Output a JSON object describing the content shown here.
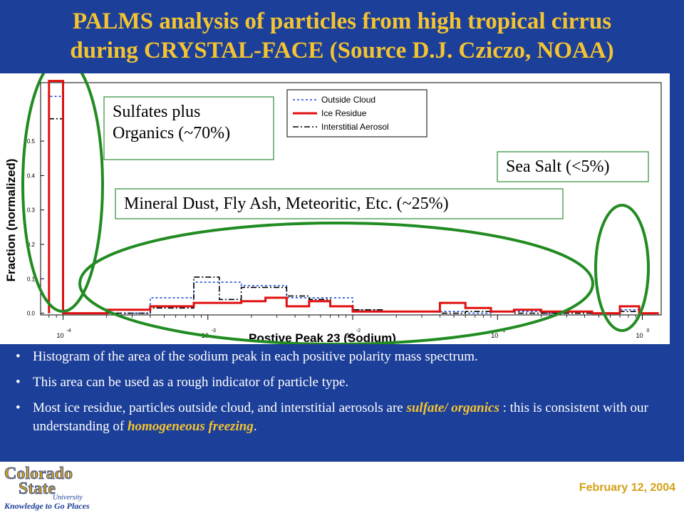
{
  "title": {
    "line1": "PALMS analysis of particles from high tropical cirrus",
    "line2": "during CRYSTAL-FACE (Source D.J. Cziczo, NOAA)"
  },
  "bullets": [
    {
      "text": "Histogram of the area of the sodium peak in each positive polarity mass spectrum."
    },
    {
      "text": "This area can be used as a rough indicator of particle type."
    },
    {
      "pre": "Most ice residue, particles outside cloud, and interstitial aerosols are ",
      "em1": "sulfate/ organics",
      "mid": " : this is consistent with our understanding of ",
      "em2": "homogeneous freezing",
      "post": "."
    }
  ],
  "footer": {
    "date": "February 12, 2004",
    "logo_line1": "Colorado",
    "logo_line2": "State",
    "logo_line3": "University",
    "logo_tagline": "Knowledge to Go Places"
  },
  "colors": {
    "slide_bg": "#1c3f99",
    "title": "#f4c430",
    "ice_residue": "#e01010",
    "outside_cloud": "#1f4fd6",
    "interstitial": "#000000",
    "ellipse": "#228b22",
    "date": "#d4a017"
  },
  "chart_data": {
    "type": "line",
    "step": true,
    "xlabel": "Postive Peak 23 (Sodium)",
    "ylabel": "Fraction (normalized)",
    "xscale": "log",
    "xlim": [
      7e-05,
      1.35
    ],
    "ylim": [
      -0.005,
      0.67
    ],
    "xticks": [
      {
        "value": 0.0001,
        "base": "10",
        "exp": "-4"
      },
      {
        "value": 0.001,
        "base": "10",
        "exp": "-3"
      },
      {
        "value": 0.01,
        "base": "10",
        "exp": "-2"
      },
      {
        "value": 0.1,
        "base": "10",
        "exp": "-1"
      },
      {
        "value": 1,
        "base": "10",
        "exp": "0"
      }
    ],
    "yticks": [
      {
        "value": 0.0,
        "label": "0.0"
      },
      {
        "value": 0.1,
        "label": "0.1"
      },
      {
        "value": 0.2,
        "label": "0.2"
      },
      {
        "value": 0.3,
        "label": "0.3"
      },
      {
        "value": 0.4,
        "label": "0.4"
      },
      {
        "value": 0.5,
        "label": "0.5"
      }
    ],
    "grid": false,
    "legend": "top-center",
    "series": [
      {
        "name": "Outside Cloud",
        "style": "dotted",
        "bins": [
          8e-05,
          0.0001,
          0.00015,
          0.0002,
          0.0003,
          0.0004,
          0.0006,
          0.0008,
          0.0012,
          0.0017,
          0.0025,
          0.0035,
          0.005,
          0.007,
          0.01,
          0.016,
          0.025,
          0.04,
          0.06,
          0.09,
          0.13,
          0.2,
          0.3,
          0.45,
          0.7,
          0.95,
          1.3
        ],
        "values": [
          0.63,
          0.0,
          0.0,
          0.0,
          0.0,
          0.045,
          0.045,
          0.09,
          0.09,
          0.08,
          0.08,
          0.045,
          0.045,
          0.045,
          0.01,
          0.005,
          0.005,
          0.005,
          0.0,
          0.005,
          0.005,
          0.0,
          0.005,
          0.0,
          0.01,
          0.0
        ]
      },
      {
        "name": "Ice Residue",
        "style": "solid",
        "bins": [
          8e-05,
          0.0001,
          0.00015,
          0.0002,
          0.0003,
          0.0004,
          0.0006,
          0.0008,
          0.0012,
          0.0017,
          0.0025,
          0.0035,
          0.005,
          0.007,
          0.01,
          0.016,
          0.025,
          0.04,
          0.06,
          0.09,
          0.13,
          0.2,
          0.3,
          0.45,
          0.7,
          0.95,
          1.3
        ],
        "values": [
          0.675,
          0.0,
          0.0,
          0.01,
          0.01,
          0.02,
          0.02,
          0.03,
          0.03,
          0.035,
          0.045,
          0.02,
          0.035,
          0.02,
          0.005,
          0.005,
          0.005,
          0.03,
          0.015,
          0.005,
          0.01,
          0.005,
          0.005,
          0.0,
          0.02,
          0.0
        ]
      },
      {
        "name": "Interstitial Aerosol",
        "style": "dashdot",
        "bins": [
          8e-05,
          0.0001,
          0.00015,
          0.0002,
          0.0003,
          0.0004,
          0.0006,
          0.0008,
          0.0012,
          0.0017,
          0.0025,
          0.0035,
          0.005,
          0.007,
          0.01,
          0.016,
          0.025,
          0.04,
          0.06,
          0.09,
          0.13,
          0.2,
          0.3,
          0.45,
          0.7,
          0.95,
          1.3
        ],
        "values": [
          0.565,
          0.0,
          0.0,
          0.0,
          0.0,
          0.015,
          0.015,
          0.105,
          0.04,
          0.075,
          0.075,
          0.05,
          0.04,
          0.02,
          0.01,
          0.005,
          0.005,
          0.0,
          0.005,
          0.005,
          0.0,
          0.0,
          0.0,
          0.0,
          0.005,
          0.0
        ]
      }
    ],
    "annotations": [
      {
        "id": "sulfates",
        "lines": [
          "Sulfates plus",
          "Organics (~70%)"
        ]
      },
      {
        "id": "sea_salt",
        "lines": [
          "Sea Salt (<5%)"
        ]
      },
      {
        "id": "mineral",
        "lines": [
          "Mineral Dust, Fly Ash, Meteoritic, Etc. (~25%)"
        ]
      }
    ]
  }
}
